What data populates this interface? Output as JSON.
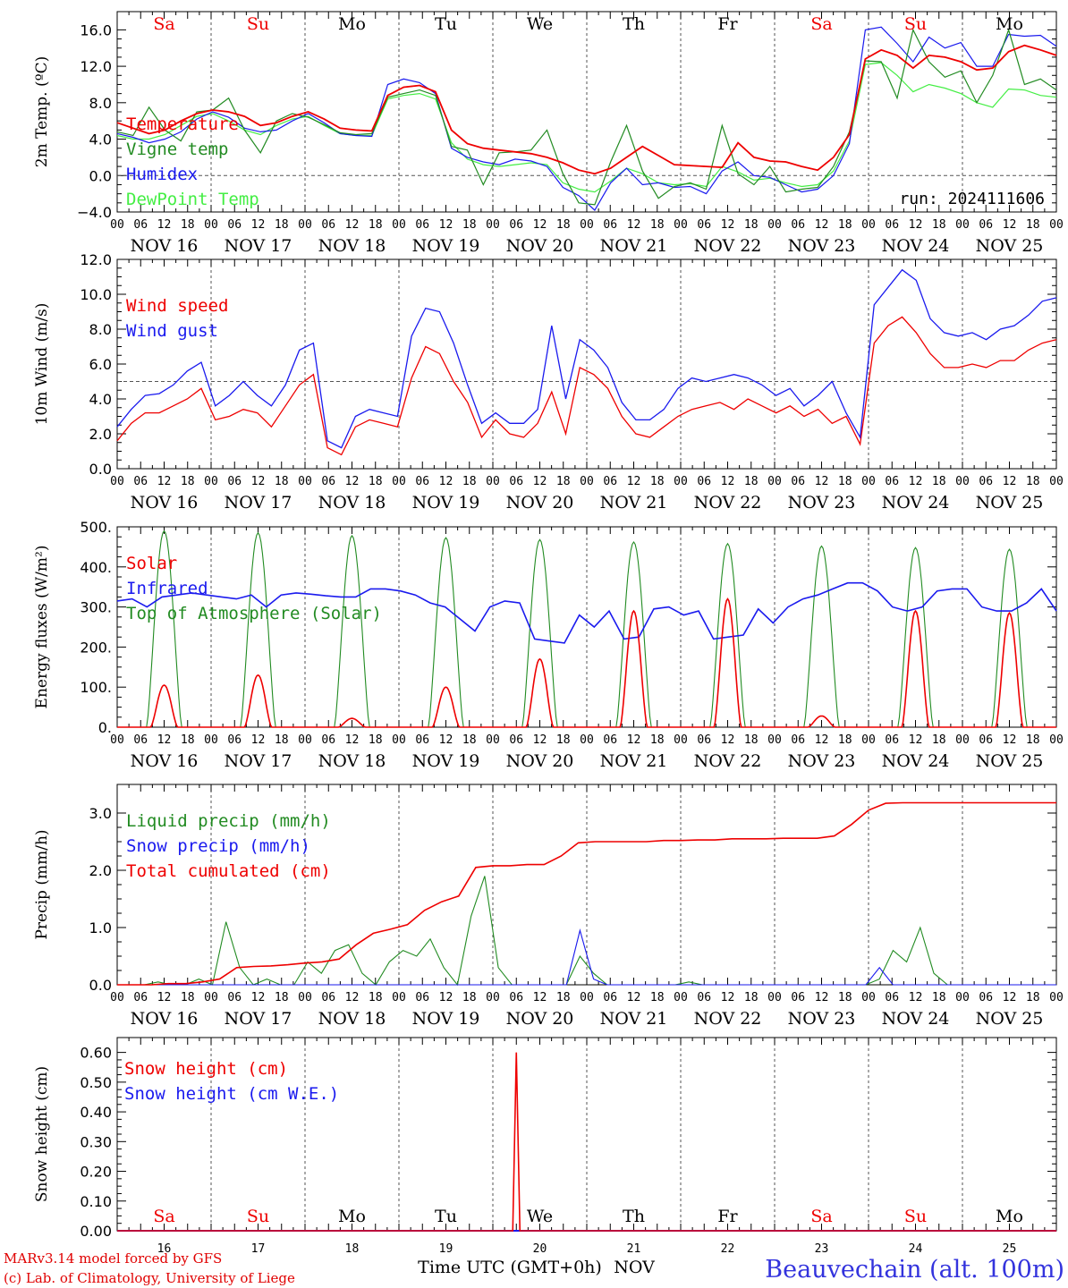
{
  "chart_data": [
    {
      "type": "line",
      "ylabel": "2m Temp. (ºC)",
      "ylim": [
        -4,
        18
      ],
      "yticks": [
        "-4.0",
        "0.0",
        "4.0",
        "8.0",
        "12.0",
        "16.0"
      ],
      "day_labels": [
        "Sa",
        "Su",
        "Mo",
        "Tu",
        "We",
        "Th",
        "Fr",
        "Sa",
        "Su",
        "Mo"
      ],
      "run_label": "run: 2024111606",
      "reference_line": 0,
      "series": [
        {
          "name": "Temperature",
          "color": "#ee0000",
          "values": [
            5.8,
            5.2,
            4.6,
            5.0,
            6.0,
            6.8,
            7.2,
            7.0,
            6.5,
            5.5,
            5.8,
            6.5,
            7.0,
            6.2,
            5.2,
            5.0,
            4.9,
            8.8,
            9.7,
            9.9,
            9.2,
            5.0,
            3.5,
            3.0,
            2.8,
            2.6,
            2.4,
            2.0,
            1.4,
            0.6,
            0.2,
            0.8,
            2.0,
            3.2,
            2.2,
            1.2,
            1.1,
            1.0,
            0.9,
            3.6,
            2.0,
            1.6,
            1.5,
            1.0,
            0.6,
            2.0,
            4.5,
            12.8,
            13.8,
            13.2,
            11.8,
            13.2,
            13.0,
            12.5,
            11.6,
            11.8,
            13.6,
            14.3,
            13.8,
            13.2
          ]
        },
        {
          "name": "Vigne temp",
          "color": "#228b22",
          "values": [
            4.8,
            4.4,
            7.5,
            5.0,
            3.8,
            7.0,
            7.2,
            8.5,
            5.0,
            2.5,
            6.0,
            6.8,
            6.4,
            5.6,
            4.7,
            4.5,
            4.6,
            8.6,
            9.0,
            9.4,
            8.8,
            3.2,
            2.8,
            -1.0,
            2.5,
            2.6,
            2.8,
            5.0,
            0.2,
            -3.0,
            -3.2,
            1.5,
            5.5,
            0.5,
            -2.5,
            -1.2,
            -0.8,
            -1.5,
            5.5,
            0.2,
            -1.0,
            1.0,
            -1.8,
            -1.5,
            -1.3,
            1.0,
            4.8,
            12.6,
            12.5,
            8.5,
            16.0,
            12.5,
            10.8,
            11.5,
            8.0,
            11.0,
            16.0,
            10.0,
            10.6,
            9.4
          ]
        },
        {
          "name": "Humidex",
          "color": "#1a1aee",
          "values": [
            4.6,
            4.2,
            3.6,
            4.0,
            4.8,
            6.2,
            7.0,
            6.4,
            5.2,
            4.8,
            5.0,
            6.0,
            6.8,
            5.8,
            4.6,
            4.4,
            4.3,
            10.0,
            10.6,
            10.2,
            9.0,
            3.0,
            2.0,
            1.5,
            1.2,
            1.8,
            1.6,
            1.0,
            -1.3,
            -2.2,
            -3.8,
            -0.8,
            0.8,
            -1.0,
            -0.8,
            -1.3,
            -1.2,
            -2.0,
            0.5,
            1.5,
            0.0,
            -0.2,
            -1.0,
            -1.8,
            -1.5,
            0.0,
            3.5,
            16.0,
            16.3,
            14.5,
            12.5,
            15.2,
            14.0,
            14.6,
            12.0,
            12.0,
            15.5,
            15.3,
            15.4,
            14.2
          ]
        },
        {
          "name": "DewPoint Temp",
          "color": "#44ee44",
          "values": [
            4.4,
            4.0,
            4.0,
            4.5,
            5.5,
            6.5,
            6.8,
            6.0,
            5.0,
            4.5,
            5.5,
            6.2,
            6.5,
            5.5,
            4.6,
            4.4,
            4.4,
            8.4,
            8.8,
            9.0,
            8.4,
            3.6,
            1.8,
            1.2,
            1.0,
            1.2,
            1.4,
            1.2,
            -0.8,
            -1.5,
            -1.8,
            -0.6,
            0.8,
            0.2,
            -0.8,
            -1.0,
            -0.9,
            -1.2,
            1.0,
            0.4,
            -0.5,
            -0.3,
            -0.8,
            -1.2,
            -1.0,
            0.5,
            3.8,
            12.2,
            12.4,
            11.0,
            9.2,
            10.0,
            9.6,
            9.0,
            8.0,
            7.5,
            9.5,
            9.4,
            8.8,
            8.6
          ]
        }
      ]
    },
    {
      "type": "line",
      "ylabel": "10m Wind (m/s)",
      "ylim": [
        0,
        12
      ],
      "yticks": [
        "0.0",
        "2.0",
        "4.0",
        "6.0",
        "8.0",
        "10.0",
        "12.0"
      ],
      "reference_line": 5,
      "series": [
        {
          "name": "Wind speed",
          "color": "#ee0000",
          "values": [
            1.6,
            2.6,
            3.2,
            3.2,
            3.6,
            4.0,
            4.6,
            2.8,
            3.0,
            3.4,
            3.2,
            2.4,
            3.6,
            4.8,
            5.4,
            1.2,
            0.8,
            2.4,
            2.8,
            2.6,
            2.4,
            5.2,
            7.0,
            6.6,
            5.0,
            3.8,
            1.8,
            2.8,
            2.0,
            1.8,
            2.6,
            4.4,
            2.0,
            5.8,
            5.4,
            4.6,
            3.0,
            2.0,
            1.8,
            2.4,
            3.0,
            3.4,
            3.6,
            3.8,
            3.4,
            4.0,
            3.6,
            3.2,
            3.6,
            3.0,
            3.4,
            2.6,
            3.0,
            1.4,
            7.2,
            8.2,
            8.7,
            7.8,
            6.6,
            5.8,
            5.8,
            6.0,
            5.8,
            6.2,
            6.2,
            6.8,
            7.2,
            7.4
          ]
        },
        {
          "name": "Wind gust",
          "color": "#1a1aee",
          "values": [
            2.4,
            3.4,
            4.2,
            4.3,
            4.8,
            5.6,
            6.1,
            3.6,
            4.2,
            5.0,
            4.2,
            3.6,
            4.8,
            6.8,
            7.2,
            1.6,
            1.2,
            3.0,
            3.4,
            3.2,
            3.0,
            7.6,
            9.2,
            9.0,
            7.2,
            4.8,
            2.6,
            3.2,
            2.6,
            2.6,
            3.4,
            8.2,
            4.0,
            7.4,
            6.8,
            5.8,
            3.8,
            2.8,
            2.8,
            3.4,
            4.6,
            5.2,
            5.0,
            5.2,
            5.4,
            5.2,
            4.8,
            4.2,
            4.6,
            3.6,
            4.2,
            5.0,
            3.2,
            1.8,
            9.4,
            10.4,
            11.4,
            10.8,
            8.6,
            7.8,
            7.6,
            7.8,
            7.4,
            8.0,
            8.2,
            8.8,
            9.6,
            9.8
          ]
        }
      ]
    },
    {
      "type": "line",
      "ylabel": "Energy fluxes (W/m²)",
      "ylim": [
        0,
        500
      ],
      "yticks": [
        "0.",
        "100.",
        "200.",
        "300.",
        "400.",
        "500."
      ],
      "series": [
        {
          "name": "Solar",
          "color": "#ee0000",
          "day_peaks": [
            105,
            130,
            22,
            100,
            170,
            290,
            320,
            28,
            290,
            285
          ]
        },
        {
          "name": "Infrared",
          "color": "#1a1aee",
          "values": [
            315,
            320,
            300,
            325,
            330,
            335,
            330,
            325,
            320,
            330,
            300,
            330,
            335,
            332,
            328,
            325,
            325,
            345,
            345,
            340,
            330,
            310,
            300,
            270,
            240,
            300,
            315,
            310,
            220,
            215,
            210,
            280,
            250,
            290,
            220,
            225,
            295,
            300,
            280,
            290,
            220,
            225,
            230,
            295,
            260,
            300,
            320,
            330,
            345,
            360,
            360,
            340,
            300,
            290,
            300,
            340,
            345,
            345,
            300,
            290,
            290,
            310,
            345,
            290
          ]
        },
        {
          "name": "Top of Atmosphere (Solar)",
          "color": "#228b22",
          "day_peaks": [
            490,
            485,
            478,
            473,
            468,
            462,
            458,
            452,
            448,
            444
          ]
        }
      ]
    },
    {
      "type": "line",
      "ylabel": "Precip (mm/h)",
      "ylim": [
        0,
        3.5
      ],
      "yticks": [
        "0.0",
        "1.0",
        "2.0",
        "3.0"
      ],
      "series": [
        {
          "name": "Liquid precip (mm/h)",
          "color": "#228b22",
          "values": [
            0.0,
            0.0,
            0.0,
            0.05,
            0.0,
            0.0,
            0.1,
            0.0,
            1.1,
            0.3,
            0.0,
            0.1,
            0.0,
            0.0,
            0.4,
            0.2,
            0.6,
            0.7,
            0.2,
            0.0,
            0.4,
            0.6,
            0.5,
            0.8,
            0.3,
            0.0,
            1.2,
            1.9,
            0.3,
            0.0,
            0.0,
            0.0,
            0.0,
            0.0,
            0.5,
            0.2,
            0.0,
            0.0,
            0.0,
            0.0,
            0.0,
            0.0,
            0.05,
            0.0,
            0.0,
            0.0,
            0.0,
            0.0,
            0.0,
            0.0,
            0.0,
            0.0,
            0.0,
            0.0,
            0.0,
            0.0,
            0.1,
            0.6,
            0.4,
            1.0,
            0.2,
            0.0,
            0.0,
            0.0,
            0.0,
            0.0,
            0.0,
            0.0,
            0.0,
            0.0
          ]
        },
        {
          "name": "Snow precip (mm/h)",
          "color": "#1a1aee",
          "values": [
            0.0,
            0.0,
            0.0,
            0.0,
            0.0,
            0.0,
            0.0,
            0.0,
            0.0,
            0.0,
            0.0,
            0.0,
            0.0,
            0.0,
            0.0,
            0.0,
            0.0,
            0.0,
            0.0,
            0.0,
            0.0,
            0.0,
            0.0,
            0.0,
            0.0,
            0.0,
            0.0,
            0.0,
            0.0,
            0.0,
            0.0,
            0.0,
            0.0,
            0.0,
            0.95,
            0.1,
            0.0,
            0.0,
            0.0,
            0.0,
            0.0,
            0.0,
            0.0,
            0.0,
            0.0,
            0.0,
            0.0,
            0.0,
            0.0,
            0.0,
            0.0,
            0.0,
            0.0,
            0.0,
            0.0,
            0.0,
            0.3,
            0.0,
            0.0,
            0.0,
            0.0,
            0.0,
            0.0,
            0.0,
            0.0,
            0.0,
            0.0,
            0.0,
            0.0,
            0.0
          ]
        },
        {
          "name": "Total cumulated (cm)",
          "color": "#ee0000",
          "values": [
            0.0,
            0.0,
            0.0,
            0.02,
            0.02,
            0.05,
            0.1,
            0.3,
            0.32,
            0.33,
            0.35,
            0.38,
            0.4,
            0.45,
            0.7,
            0.9,
            0.97,
            1.05,
            1.3,
            1.45,
            1.55,
            2.05,
            2.08,
            2.08,
            2.1,
            2.1,
            2.25,
            2.48,
            2.5,
            2.5,
            2.5,
            2.5,
            2.52,
            2.52,
            2.53,
            2.53,
            2.55,
            2.55,
            2.55,
            2.56,
            2.56,
            2.56,
            2.6,
            2.8,
            3.05,
            3.17,
            3.18,
            3.18,
            3.18,
            3.18,
            3.18,
            3.18,
            3.18,
            3.18,
            3.18,
            3.18
          ]
        }
      ]
    },
    {
      "type": "line",
      "ylabel": "Snow height (cm)",
      "ylim": [
        0,
        0.65
      ],
      "yticks": [
        "0.00",
        "0.10",
        "0.20",
        "0.30",
        "0.40",
        "0.50",
        "0.60"
      ],
      "day_numbers": [
        "16",
        "17",
        "18",
        "19",
        "20",
        "21",
        "22",
        "23",
        "24",
        "25"
      ],
      "day_labels": [
        "Sa",
        "Su",
        "Mo",
        "Tu",
        "We",
        "Th",
        "Fr",
        "Sa",
        "Su",
        "Mo"
      ],
      "xlabel": "Time UTC (GMT+0h)",
      "xlabel_month": "NOV",
      "series": [
        {
          "name": "Snow height (cm)",
          "color": "#ee0000",
          "spike_x": 4.25,
          "spike_value": 0.6
        },
        {
          "name": "Snow height (cm W.E.)",
          "color": "#1a1aee"
        }
      ]
    }
  ],
  "x_axis": {
    "hour_labels": [
      "00",
      "06",
      "12",
      "18"
    ],
    "final_hour_label": "00",
    "date_labels": [
      "NOV 16",
      "NOV 17",
      "NOV 18",
      "NOV 19",
      "NOV 20",
      "NOV 21",
      "NOV 22",
      "NOV 23",
      "NOV 24",
      "NOV 25"
    ]
  },
  "footer": {
    "model": "MARv3.14 model forced by GFS",
    "credit": "(c) Lab. of Climatology, University of Liege",
    "station": "Beauvechain (alt. 100m)"
  },
  "colors": {
    "weekend_label": "#ee0000",
    "weekday_label": "#000000"
  }
}
